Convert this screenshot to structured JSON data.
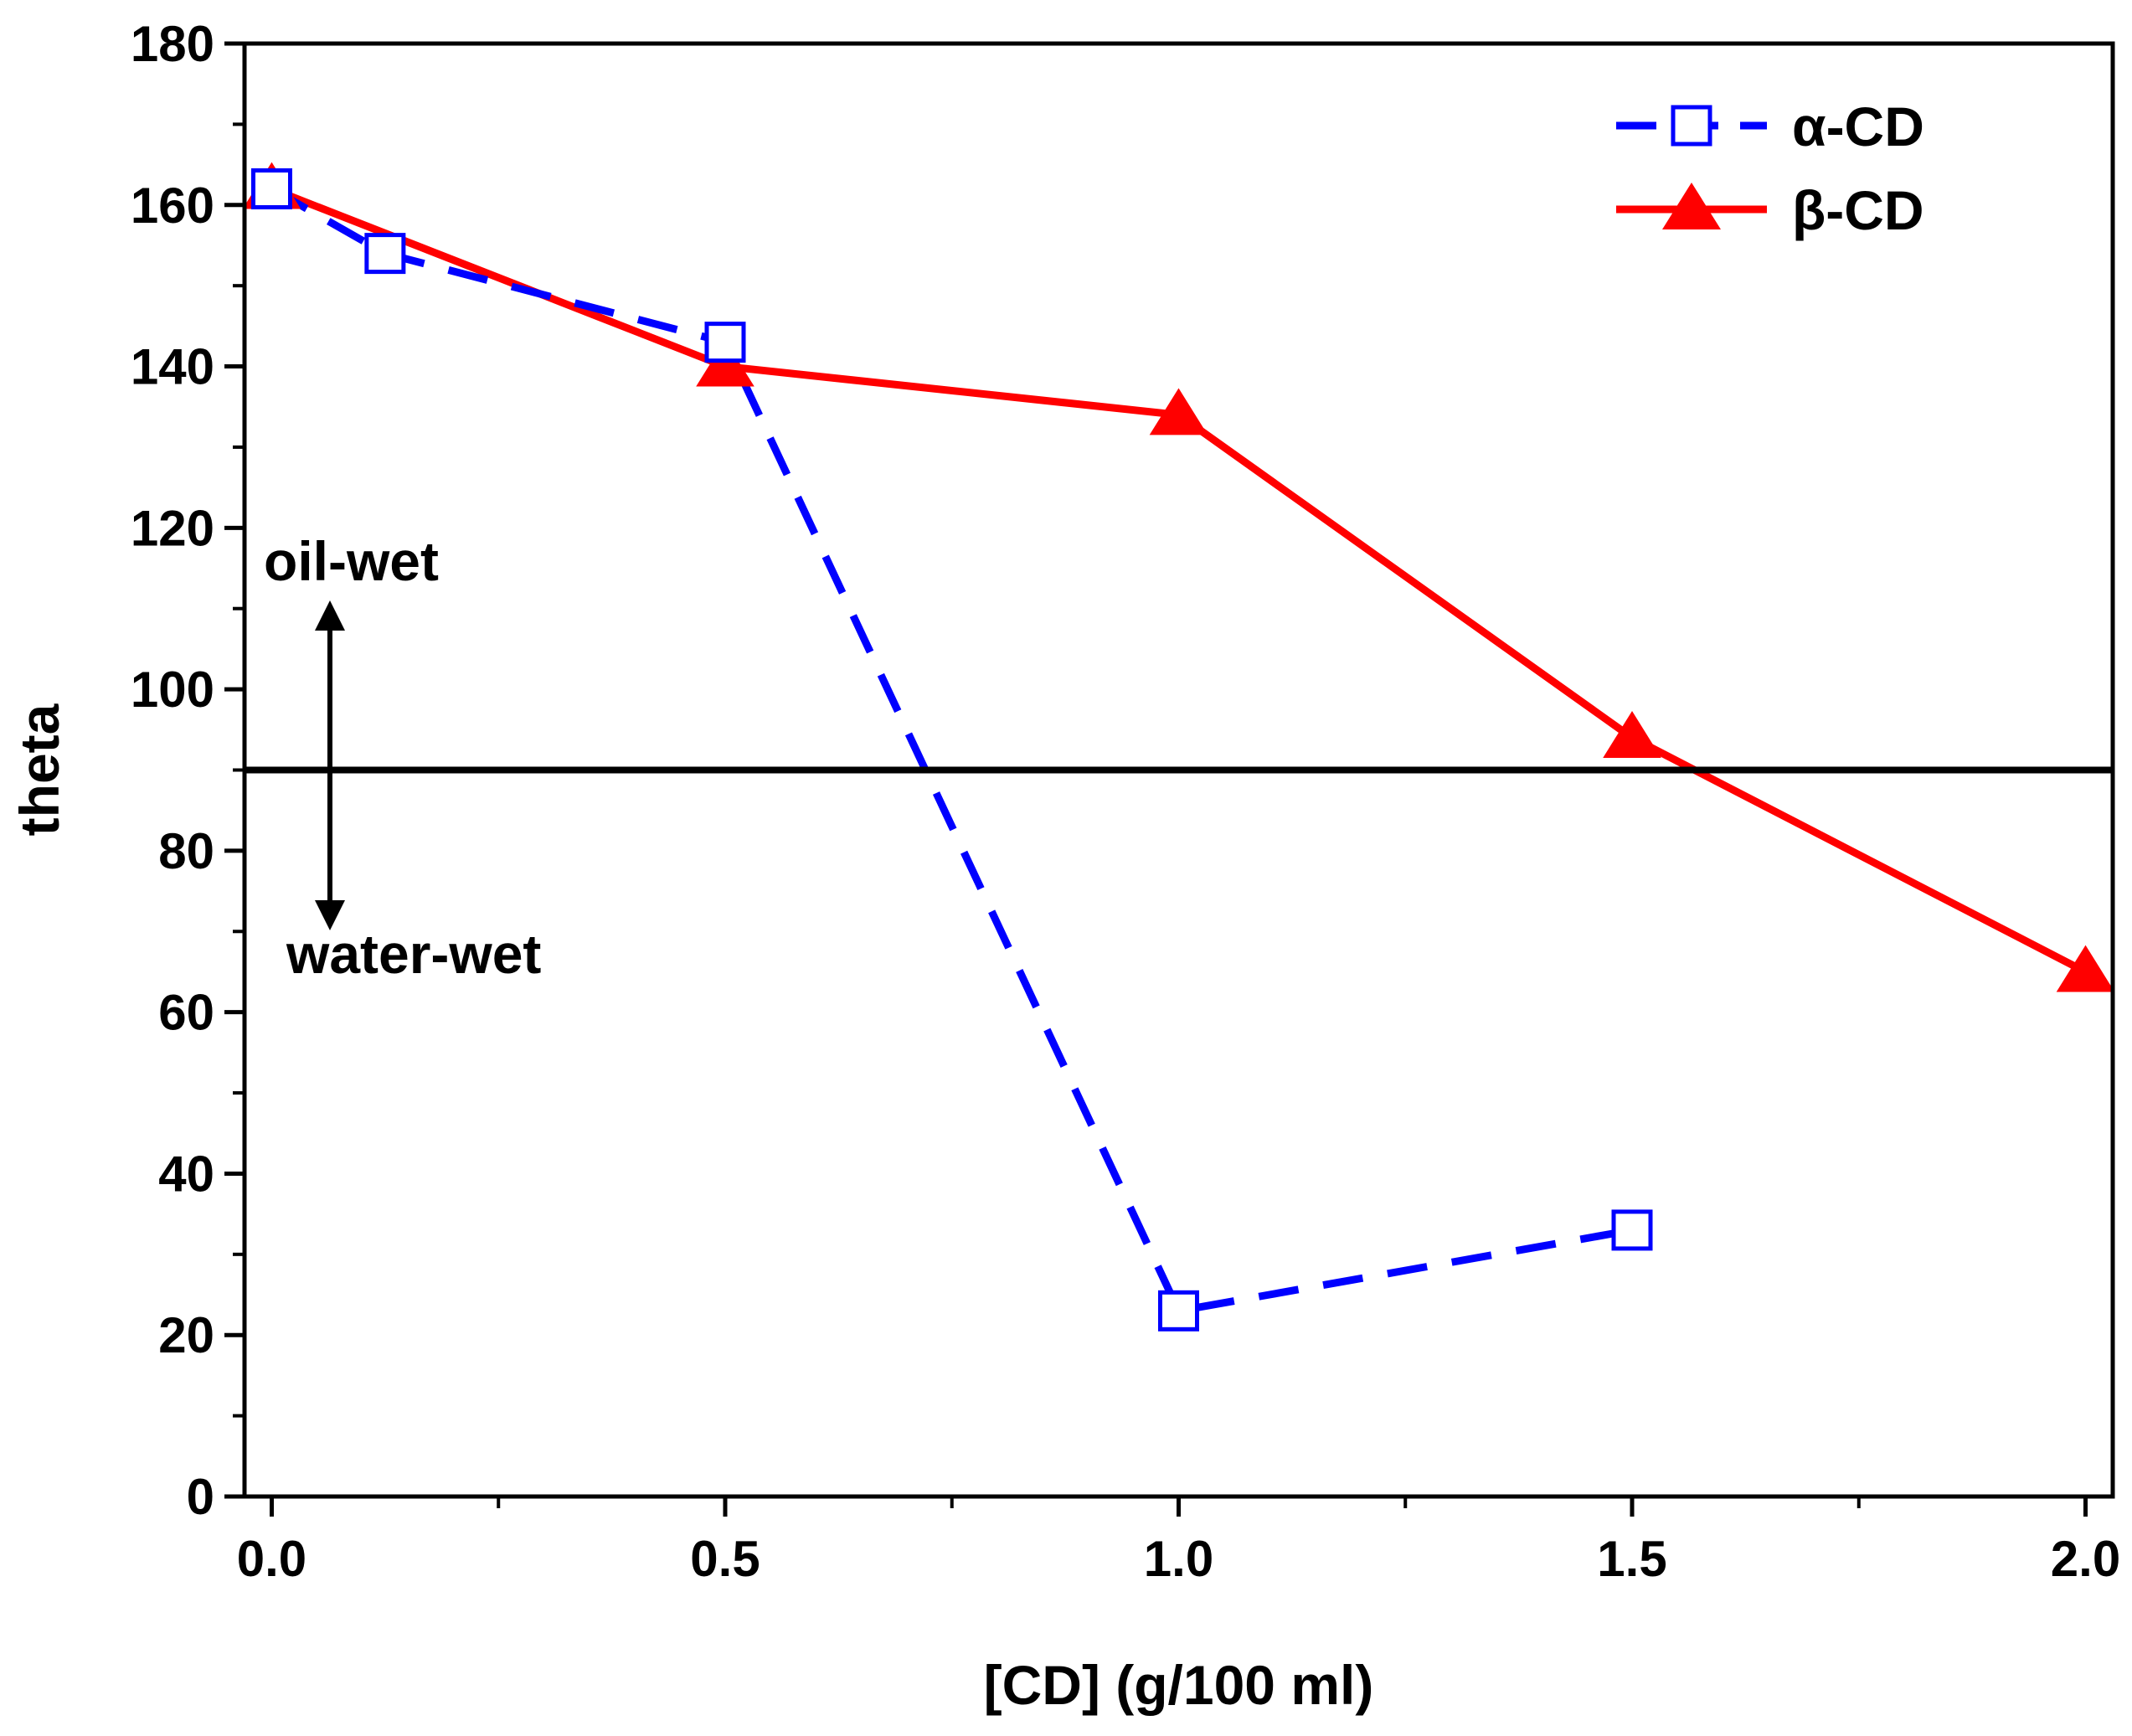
{
  "chart_data": {
    "type": "line",
    "title": "",
    "xlabel": "[CD] (g/100 ml)",
    "ylabel": "theta",
    "xlim": [
      -0.03,
      2.03
    ],
    "ylim": [
      0,
      180
    ],
    "xticks": [
      0.0,
      0.5,
      1.0,
      1.5,
      2.0
    ],
    "xtick_labels": [
      "0.0",
      "0.5",
      "1.0",
      "1.5",
      "2.0"
    ],
    "xminor_ticks": [
      0.25,
      0.75,
      1.25,
      1.75
    ],
    "yticks": [
      0,
      20,
      40,
      60,
      80,
      100,
      120,
      140,
      160,
      180
    ],
    "ytick_labels": [
      "0",
      "20",
      "40",
      "60",
      "80",
      "100",
      "120",
      "140",
      "160",
      "180"
    ],
    "yminor_ticks": [
      10,
      30,
      50,
      70,
      90,
      110,
      130,
      150,
      170
    ],
    "grid": false,
    "legend_position": "top-right",
    "reference_line": {
      "y": 90,
      "color": "#000000"
    },
    "series": [
      {
        "name": "α-CD",
        "color": "#0000ff",
        "marker": "open-square",
        "line_style": "dashed",
        "x": [
          0.0,
          0.125,
          0.5,
          1.0,
          1.5
        ],
        "y": [
          162,
          154,
          143,
          23,
          33
        ]
      },
      {
        "name": "β-CD",
        "color": "#ff0000",
        "marker": "filled-triangle",
        "line_style": "solid",
        "x": [
          0.0,
          0.5,
          1.0,
          1.5,
          2.0
        ],
        "y": [
          162,
          140,
          134,
          94,
          65
        ]
      }
    ],
    "annotations": [
      {
        "text": "oil-wet",
        "arrow": "up"
      },
      {
        "text": "water-wet",
        "arrow": "down"
      }
    ]
  }
}
